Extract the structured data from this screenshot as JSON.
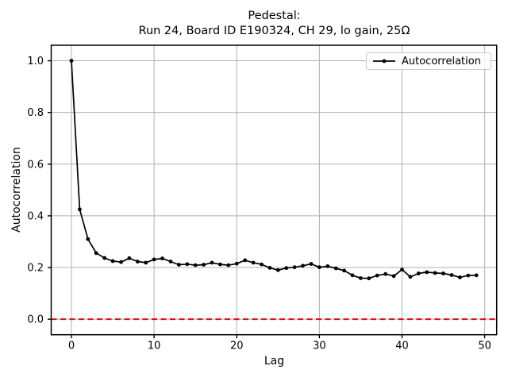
{
  "chart": {
    "title_line1": "Pedestal:",
    "title_line2": "Run 24, Board ID E190324, CH 29, lo gain, 25Ω",
    "xlabel": "Lag",
    "ylabel": "Autocorrelation",
    "legend_label": "Autocorrelation"
  },
  "chart_data": {
    "type": "line",
    "title": "Pedestal:\nRun 24, Board ID E190324, CH 29, lo gain, 25Ω",
    "xlabel": "Lag",
    "ylabel": "Autocorrelation",
    "xlim": [
      -2.45,
      51.45
    ],
    "ylim": [
      -0.06,
      1.06
    ],
    "x_ticks": [
      0,
      10,
      20,
      30,
      40,
      50
    ],
    "x_tick_labels": [
      "0",
      "10",
      "20",
      "30",
      "40",
      "50"
    ],
    "y_ticks": [
      0.0,
      0.2,
      0.4,
      0.6,
      0.8,
      1.0
    ],
    "y_tick_labels": [
      "0.0",
      "0.2",
      "0.4",
      "0.6",
      "0.8",
      "1.0"
    ],
    "grid": true,
    "legend_position": "upper right",
    "colors": {
      "grid": "#b0b0b0",
      "spine": "#000000",
      "background": "#ffffff"
    },
    "reference_lines": [
      {
        "y": 0.0,
        "color": "#ff0000",
        "style": "dashed"
      }
    ],
    "series": [
      {
        "name": "Autocorrelation",
        "color": "#000000",
        "marker": "circle",
        "x": [
          0,
          1,
          2,
          3,
          4,
          5,
          6,
          7,
          8,
          9,
          10,
          11,
          12,
          13,
          14,
          15,
          16,
          17,
          18,
          19,
          20,
          21,
          22,
          23,
          24,
          25,
          26,
          27,
          28,
          29,
          30,
          31,
          32,
          33,
          34,
          35,
          36,
          37,
          38,
          39,
          40,
          41,
          42,
          43,
          44,
          45,
          46,
          47,
          48,
          49
        ],
        "values": [
          1.0,
          0.425,
          0.31,
          0.256,
          0.237,
          0.225,
          0.221,
          0.236,
          0.223,
          0.219,
          0.231,
          0.235,
          0.223,
          0.211,
          0.213,
          0.209,
          0.211,
          0.219,
          0.212,
          0.209,
          0.215,
          0.228,
          0.219,
          0.212,
          0.199,
          0.19,
          0.198,
          0.201,
          0.207,
          0.214,
          0.201,
          0.205,
          0.197,
          0.188,
          0.17,
          0.159,
          0.158,
          0.169,
          0.175,
          0.167,
          0.192,
          0.164,
          0.177,
          0.182,
          0.179,
          0.177,
          0.171,
          0.162,
          0.169,
          0.17
        ]
      }
    ]
  }
}
